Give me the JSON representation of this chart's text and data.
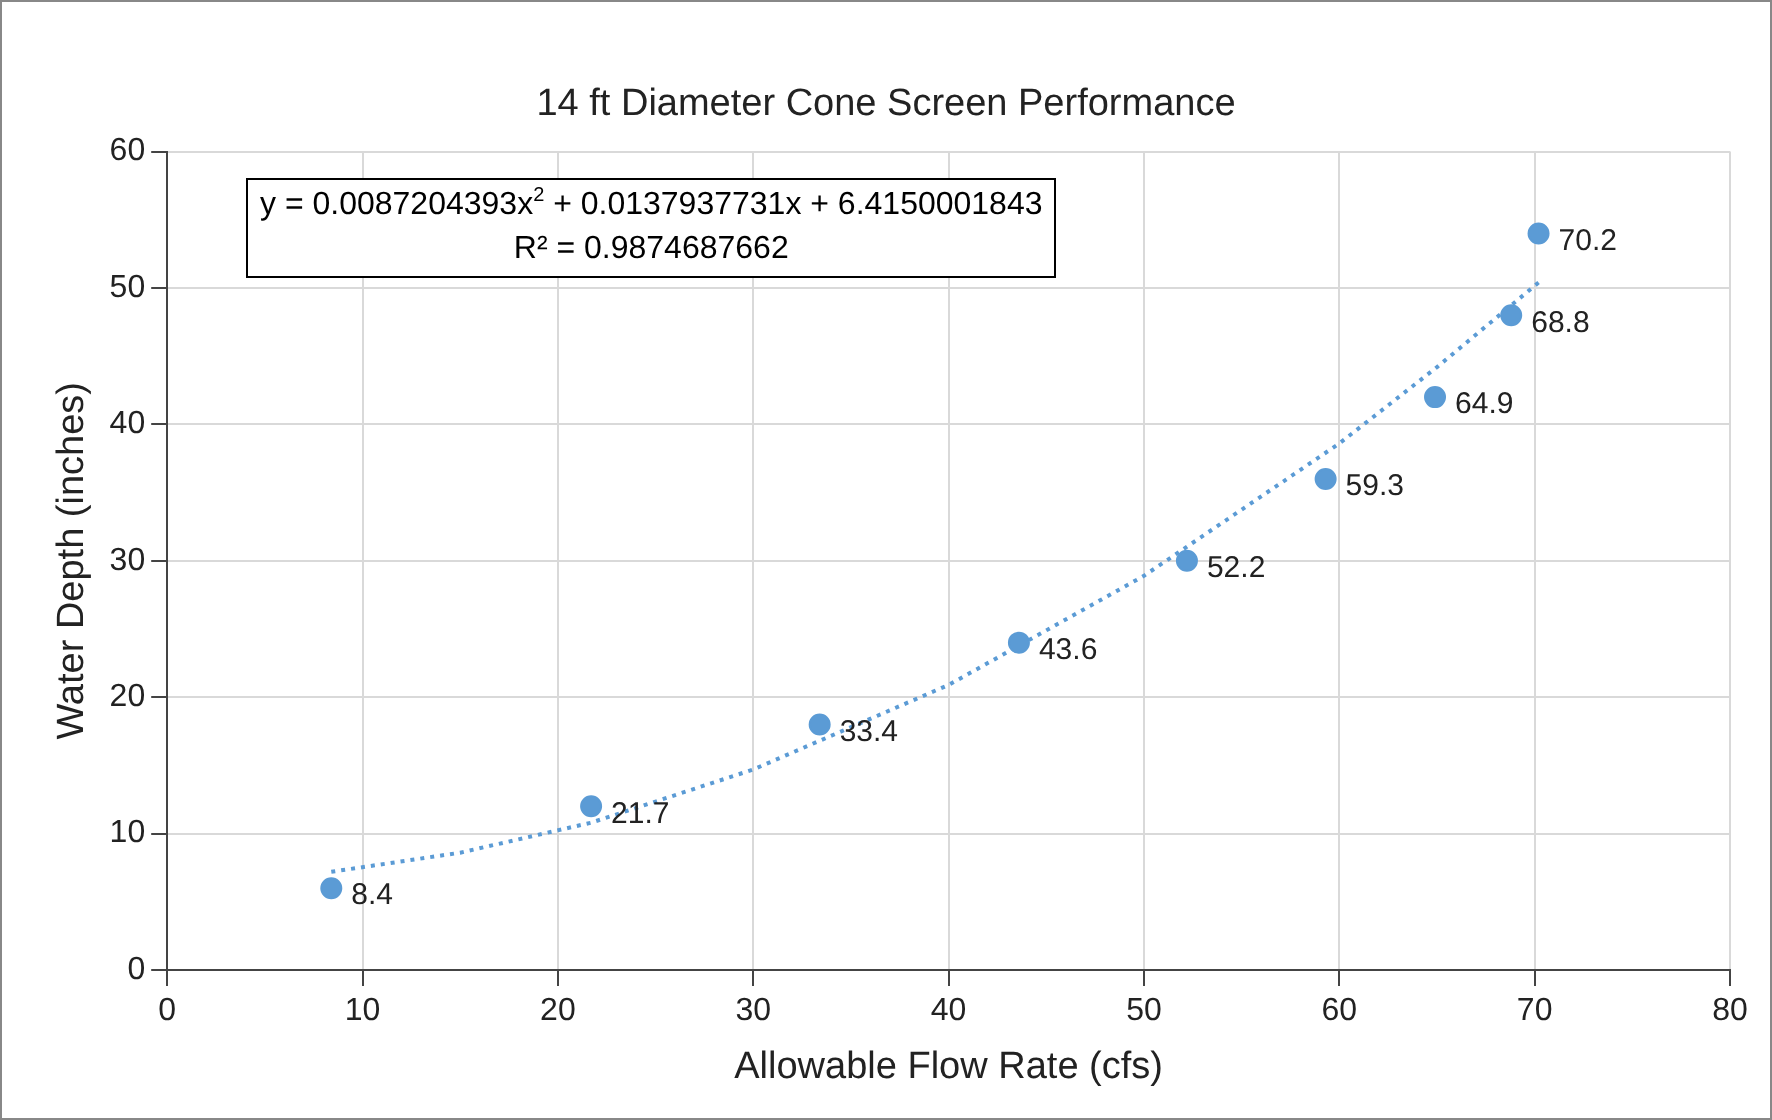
{
  "chart_data": {
    "type": "scatter",
    "title": "14 ft Diameter Cone Screen Performance",
    "xlabel": "Allowable Flow Rate (cfs)",
    "ylabel": "Water Depth (inches)",
    "xlim": [
      0,
      80
    ],
    "xticks": [
      0,
      10,
      20,
      30,
      40,
      50,
      60,
      70,
      80
    ],
    "ylim": [
      0,
      60
    ],
    "yticks": [
      0,
      10,
      20,
      30,
      40,
      50,
      60
    ],
    "grid": true,
    "legend": false,
    "marker": "circle",
    "annotations": [
      "y = 0.0087204393x$^{2}$ + 0.0137937731x + 6.4150001843",
      "R² = 0.9874687662",
      {
        "text": "8.4",
        "x": 8.4,
        "y": 6
      },
      {
        "text": "21.7",
        "x": 21.7,
        "y": 12
      },
      {
        "text": "33.4",
        "x": 33.4,
        "y": 18
      },
      {
        "text": "43.6",
        "x": 43.6,
        "y": 24
      },
      {
        "text": "52.2",
        "x": 52.2,
        "y": 30
      },
      {
        "text": "59.3",
        "x": 59.3,
        "y": 36
      },
      {
        "text": "64.9",
        "x": 64.9,
        "y": 42
      },
      {
        "text": "68.8",
        "x": 68.8,
        "y": 48
      },
      {
        "text": "70.2",
        "x": 70.2,
        "y": 54
      }
    ],
    "series": [
      {
        "color": "#5b9bd5",
        "x": [
          8.4,
          21.7,
          33.4,
          43.6,
          52.2,
          59.3,
          64.9,
          68.8,
          70.2
        ],
        "values": [
          6,
          12,
          18,
          24,
          30,
          36,
          42,
          48,
          54
        ]
      },
      {
        "type": "line",
        "color": "#5b9bd5",
        "line_style": "dotted",
        "marker": "none",
        "x": [
          8.4,
          15,
          21.7,
          30,
          40,
          50,
          60,
          65,
          70.2
        ],
        "values": [
          7.2,
          8.6,
          10.8,
          14.7,
          20.9,
          28.9,
          38.6,
          44.2,
          50.4
        ]
      }
    ]
  }
}
